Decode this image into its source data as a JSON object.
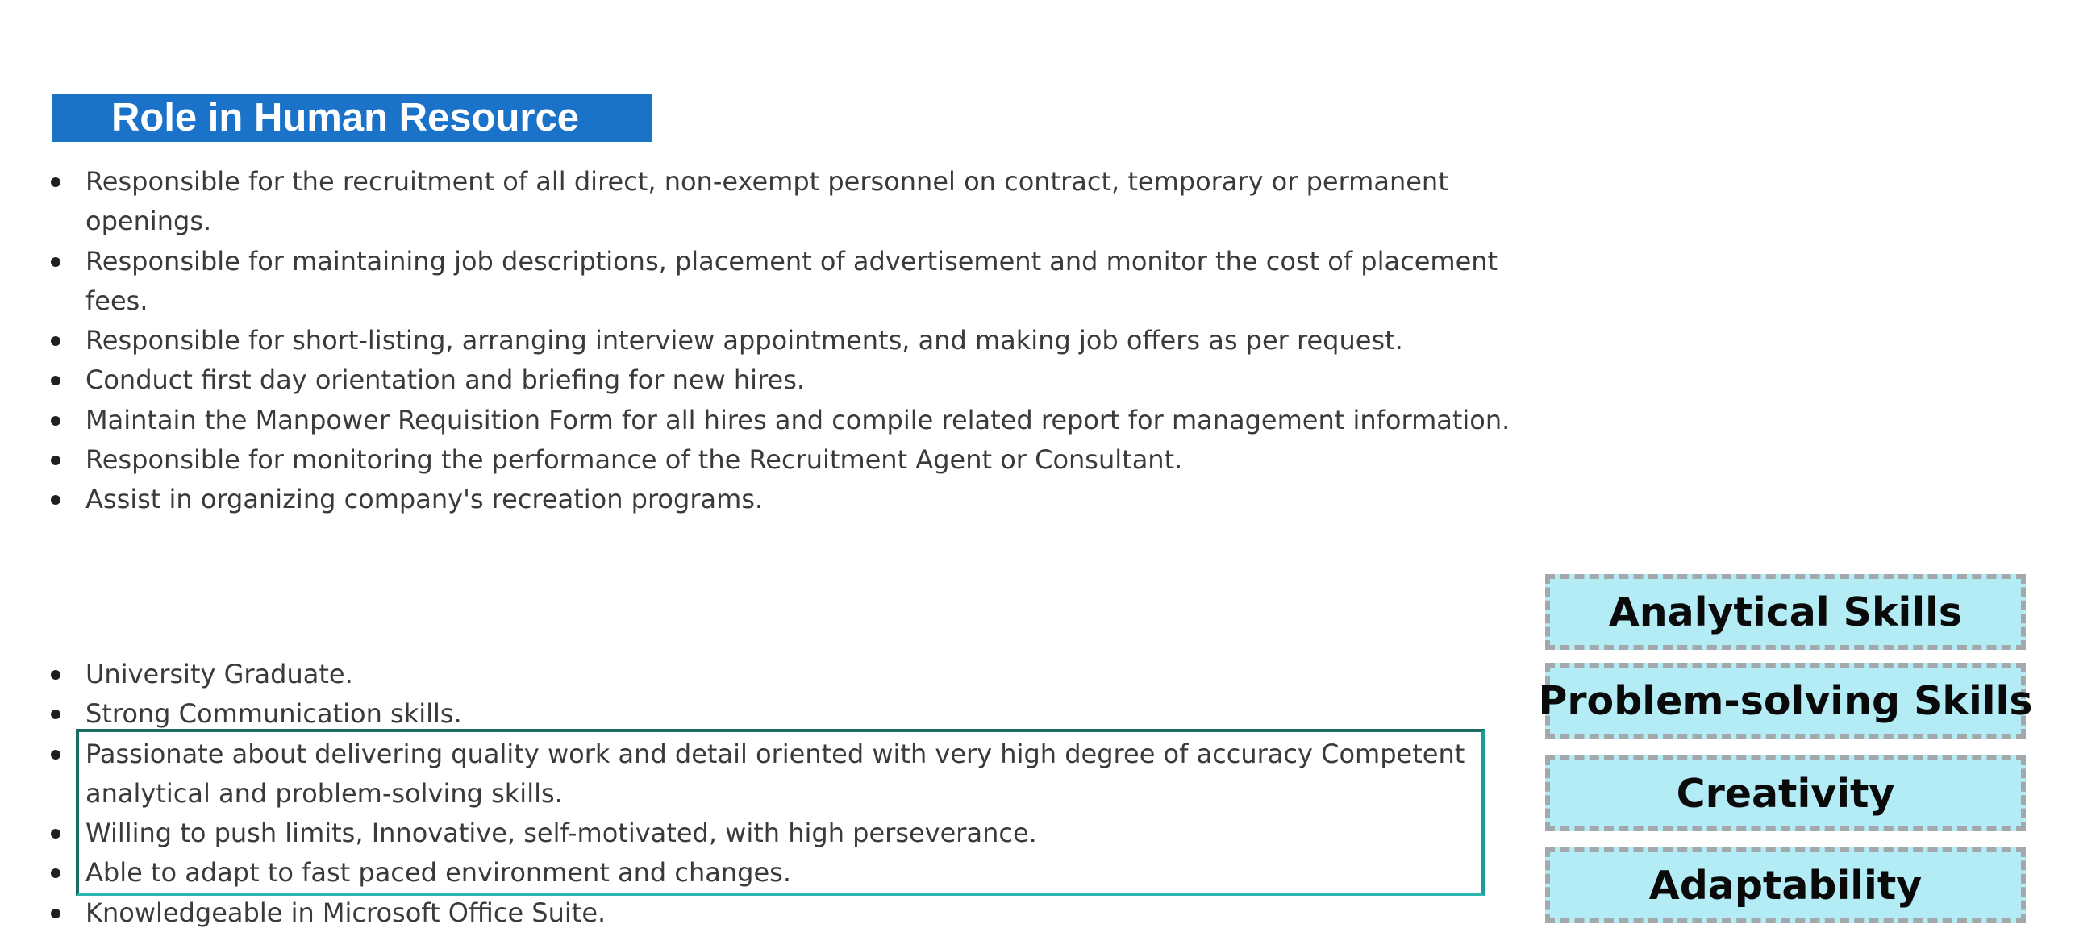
{
  "section": {
    "title": "Role in Human Resource",
    "banner_color": "#1a73c9"
  },
  "roles": [
    "Responsible for the recruitment of all direct, non-exempt personnel on contract, temporary or permanent openings.",
    "Responsible for maintaining job descriptions, placement of advertisement and monitor the cost of placement fees.",
    "Responsible for short-listing, arranging interview appointments, and making job offers as per request.",
    "Conduct first day orientation and briefing for new hires.",
    "Maintain the Manpower Requisition Form for all hires and compile related report for management information.",
    "Responsible for monitoring the performance of the Recruitment Agent or Consultant.",
    "Assist in organizing company's recreation programs."
  ],
  "qualifications": [
    "University Graduate.",
    "Strong Communication skills.",
    "Passionate about delivering quality work and detail oriented with very high degree of accuracy Competent analytical and problem-solving skills.",
    "Willing to push limits, Innovative, self-motivated, with high perseverance.",
    "Able to adapt to fast paced environment and changes.",
    "Knowledgeable in Microsoft Office Suite."
  ],
  "skills": [
    "Analytical Skills",
    "Problem-solving Skills",
    "Creativity",
    "Adaptability"
  ],
  "colors": {
    "skill_fill": "#b4ecf6",
    "skill_border": "#a2a8ab",
    "highlight_border": "#1b9c96"
  }
}
